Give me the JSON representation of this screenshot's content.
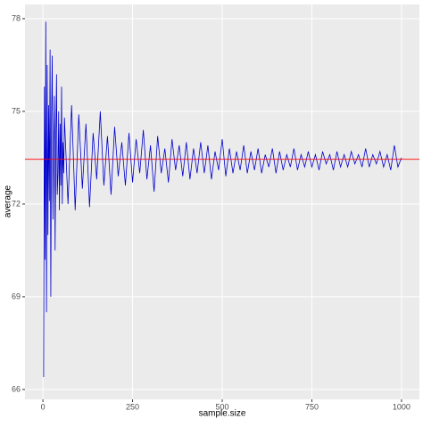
{
  "chart_data": {
    "type": "line",
    "x_label": "sample.size",
    "y_label": "average",
    "x": [
      2,
      4,
      6,
      8,
      10,
      12,
      14,
      16,
      18,
      20,
      22,
      24,
      26,
      28,
      30,
      32,
      34,
      36,
      38,
      40,
      42,
      44,
      46,
      48,
      50,
      52,
      54,
      56,
      58,
      60,
      70,
      80,
      90,
      100,
      110,
      120,
      130,
      140,
      150,
      160,
      170,
      180,
      190,
      200,
      210,
      220,
      230,
      240,
      250,
      260,
      270,
      280,
      290,
      300,
      310,
      320,
      330,
      340,
      350,
      360,
      370,
      380,
      390,
      400,
      410,
      420,
      430,
      440,
      450,
      460,
      470,
      480,
      490,
      500,
      510,
      520,
      530,
      540,
      550,
      560,
      570,
      580,
      590,
      600,
      610,
      620,
      630,
      640,
      650,
      660,
      670,
      680,
      690,
      700,
      710,
      720,
      730,
      740,
      750,
      760,
      770,
      780,
      790,
      800,
      810,
      820,
      830,
      840,
      850,
      860,
      870,
      880,
      890,
      900,
      910,
      920,
      930,
      940,
      950,
      960,
      970,
      980,
      990,
      1000
    ],
    "series": [
      {
        "color": "#0000cd",
        "values": [
          66.4,
          75.8,
          70.2,
          77.9,
          68.5,
          76.5,
          71.0,
          75.2,
          72.1,
          77.0,
          69.0,
          74.8,
          76.8,
          71.5,
          73.9,
          75.5,
          70.5,
          74.2,
          76.2,
          72.3,
          73.0,
          75.0,
          71.8,
          74.6,
          72.6,
          75.8,
          72.0,
          74.0,
          73.0,
          74.8,
          72.0,
          75.2,
          71.8,
          74.9,
          72.5,
          74.6,
          71.9,
          74.3,
          72.8,
          75.0,
          72.6,
          74.2,
          72.3,
          74.5,
          72.9,
          74.0,
          72.6,
          74.3,
          72.7,
          74.1,
          73.0,
          74.4,
          72.8,
          73.9,
          72.4,
          74.2,
          73.0,
          73.8,
          72.7,
          74.1,
          73.1,
          73.9,
          72.9,
          74.0,
          72.8,
          73.8,
          73.0,
          74.0,
          73.0,
          73.9,
          72.8,
          73.7,
          73.1,
          74.1,
          72.9,
          73.8,
          73.0,
          73.7,
          73.1,
          73.9,
          73.0,
          73.7,
          73.1,
          73.8,
          73.0,
          73.6,
          73.2,
          73.8,
          73.0,
          73.7,
          73.1,
          73.6,
          73.2,
          73.8,
          73.1,
          73.6,
          73.2,
          73.7,
          73.2,
          73.6,
          73.1,
          73.7,
          73.3,
          73.6,
          73.1,
          73.7,
          73.2,
          73.6,
          73.2,
          73.7,
          73.3,
          73.6,
          73.2,
          73.8,
          73.2,
          73.6,
          73.3,
          73.7,
          73.2,
          73.6,
          73.1,
          73.9,
          73.2,
          73.5
        ]
      }
    ],
    "hline": {
      "value": 73.45,
      "color": "#ff0000"
    },
    "xlim": [
      -50,
      1050
    ],
    "ylim": [
      65.68,
      78.46
    ],
    "xticks": [
      0,
      250,
      500,
      750,
      1000
    ],
    "yticks": [
      66,
      69,
      72,
      75,
      78
    ],
    "grid": true
  }
}
